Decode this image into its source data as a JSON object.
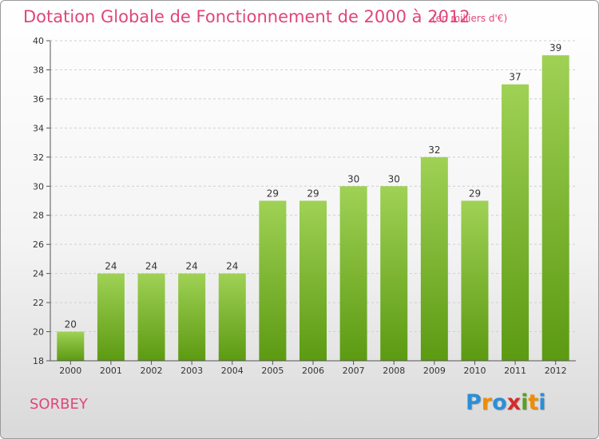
{
  "title": "Dotation Globale de Fonctionnement de 2000 à 2012",
  "subtitle": "(en milliers d'€)",
  "commune": "SORBEY",
  "logo": {
    "text": "Proxiti",
    "letters": [
      "P",
      "r",
      "o",
      "x",
      "i",
      "t",
      "i"
    ],
    "colors": [
      "#2a8fd6",
      "#f08c00",
      "#2a8fd6",
      "#d62a2a",
      "#5aa020",
      "#f08c00",
      "#2a8fd6"
    ]
  },
  "colors": {
    "title": "#e0467a",
    "bar_top": "#9fd155",
    "bar_bottom": "#5c9a12"
  },
  "chart_data": {
    "type": "bar",
    "title": "Dotation Globale de Fonctionnement de 2000 à 2012",
    "subtitle": "(en milliers d'€)",
    "categories": [
      "2000",
      "2001",
      "2002",
      "2003",
      "2004",
      "2005",
      "2006",
      "2007",
      "2008",
      "2009",
      "2010",
      "2011",
      "2012"
    ],
    "values": [
      20,
      24,
      24,
      24,
      24,
      29,
      29,
      30,
      30,
      32,
      29,
      37,
      39
    ],
    "ylim": [
      18,
      40
    ],
    "yticks": [
      18,
      20,
      22,
      24,
      26,
      28,
      30,
      32,
      34,
      36,
      38,
      40
    ],
    "grid": true
  }
}
